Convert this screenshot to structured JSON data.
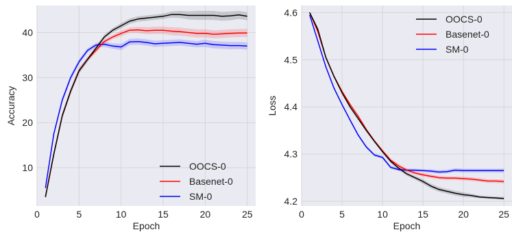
{
  "chart_data": [
    {
      "type": "line",
      "xlabel": "Epoch",
      "ylabel": "Accuracy",
      "xlim": [
        0,
        26
      ],
      "ylim": [
        1.5,
        46
      ],
      "xticks": [
        0,
        5,
        10,
        15,
        20,
        25
      ],
      "yticks": [
        10,
        20,
        30,
        40
      ],
      "legend_position": "bottom-right",
      "grid": true,
      "x": [
        1,
        2,
        3,
        4,
        5,
        6,
        7,
        8,
        9,
        10,
        11,
        12,
        13,
        14,
        15,
        16,
        17,
        18,
        19,
        20,
        21,
        22,
        23,
        24,
        25
      ],
      "series": [
        {
          "name": "OOCS-0",
          "color": "#000000",
          "values": [
            3.5,
            13.0,
            21.5,
            27.0,
            31.5,
            34.0,
            36.5,
            39.0,
            40.5,
            41.5,
            42.5,
            43.0,
            43.2,
            43.4,
            43.6,
            44.0,
            44.0,
            43.8,
            43.8,
            43.8,
            43.8,
            43.6,
            43.7,
            43.9,
            43.6
          ],
          "band": [
            0.3,
            0.5,
            0.6,
            0.6,
            0.6,
            0.5,
            0.5,
            0.5,
            0.5,
            0.6,
            0.6,
            0.6,
            0.6,
            0.6,
            0.6,
            0.7,
            0.8,
            0.9,
            1.0,
            1.0,
            1.0,
            1.0,
            1.0,
            0.9,
            0.9
          ]
        },
        {
          "name": "Basenet-0",
          "color": "#ff0000",
          "values": [
            3.5,
            13.0,
            21.5,
            27.0,
            31.5,
            34.0,
            36.0,
            38.0,
            39.0,
            39.8,
            40.5,
            40.6,
            40.4,
            40.5,
            40.5,
            40.3,
            40.2,
            40.0,
            39.8,
            39.8,
            39.6,
            39.7,
            39.8,
            39.9,
            39.9
          ],
          "band": [
            0.3,
            0.5,
            0.6,
            0.6,
            0.6,
            0.5,
            0.5,
            0.5,
            0.5,
            0.6,
            0.6,
            0.7,
            0.8,
            0.8,
            0.8,
            0.9,
            0.9,
            0.9,
            0.9,
            0.9,
            0.9,
            0.9,
            0.9,
            0.9,
            0.9
          ]
        },
        {
          "name": "SM-0",
          "color": "#0000ff",
          "values": [
            5.5,
            17.5,
            25.0,
            30.0,
            33.5,
            36.0,
            37.2,
            37.4,
            37.0,
            36.8,
            37.9,
            38.0,
            37.8,
            37.5,
            37.6,
            37.7,
            37.8,
            37.6,
            37.4,
            37.6,
            37.3,
            37.2,
            37.1,
            37.1,
            37.0
          ],
          "band": [
            0.3,
            0.5,
            0.6,
            0.6,
            0.6,
            0.5,
            0.5,
            0.6,
            0.6,
            0.7,
            0.7,
            0.7,
            0.7,
            0.7,
            0.7,
            0.7,
            0.7,
            0.7,
            0.7,
            0.8,
            0.8,
            0.8,
            0.8,
            0.8,
            0.8
          ]
        }
      ]
    },
    {
      "type": "line",
      "xlabel": "Epoch",
      "ylabel": "Loss",
      "xlim": [
        0,
        26
      ],
      "ylim": [
        4.19,
        4.615
      ],
      "xticks": [
        0,
        5,
        10,
        15,
        20,
        25
      ],
      "yticks": [
        4.2,
        4.3,
        4.4,
        4.5,
        4.6
      ],
      "legend_position": "top-right",
      "grid": true,
      "x": [
        1,
        2,
        3,
        4,
        5,
        6,
        7,
        8,
        9,
        10,
        11,
        12,
        13,
        14,
        15,
        16,
        17,
        18,
        19,
        20,
        21,
        22,
        23,
        24,
        25
      ],
      "series": [
        {
          "name": "OOCS-0",
          "color": "#000000",
          "values": [
            4.6,
            4.565,
            4.505,
            4.465,
            4.43,
            4.4,
            4.375,
            4.35,
            4.327,
            4.305,
            4.285,
            4.27,
            4.258,
            4.25,
            4.242,
            4.232,
            4.225,
            4.221,
            4.217,
            4.214,
            4.212,
            4.209,
            4.208,
            4.207,
            4.206
          ],
          "band": [
            0.002,
            0.003,
            0.003,
            0.003,
            0.003,
            0.003,
            0.003,
            0.003,
            0.003,
            0.003,
            0.004,
            0.004,
            0.004,
            0.004,
            0.005,
            0.005,
            0.005,
            0.005,
            0.005,
            0.005,
            0.004,
            0.003,
            0.003,
            0.003,
            0.003
          ]
        },
        {
          "name": "Basenet-0",
          "color": "#ff0000",
          "values": [
            4.6,
            4.56,
            4.505,
            4.465,
            4.433,
            4.405,
            4.38,
            4.352,
            4.328,
            4.307,
            4.287,
            4.275,
            4.266,
            4.26,
            4.256,
            4.253,
            4.25,
            4.249,
            4.249,
            4.248,
            4.247,
            4.245,
            4.243,
            4.243,
            4.242
          ],
          "band": [
            0.002,
            0.003,
            0.003,
            0.003,
            0.003,
            0.003,
            0.003,
            0.003,
            0.003,
            0.003,
            0.004,
            0.004,
            0.004,
            0.004,
            0.004,
            0.004,
            0.004,
            0.004,
            0.004,
            0.004,
            0.004,
            0.004,
            0.004,
            0.004,
            0.004
          ]
        },
        {
          "name": "SM-0",
          "color": "#0000ff",
          "values": [
            4.595,
            4.54,
            4.485,
            4.44,
            4.405,
            4.372,
            4.34,
            4.315,
            4.298,
            4.293,
            4.272,
            4.267,
            4.266,
            4.266,
            4.265,
            4.264,
            4.262,
            4.263,
            4.266,
            4.265,
            4.265,
            4.265,
            4.265,
            4.265,
            4.265
          ],
          "band": [
            0.002,
            0.003,
            0.003,
            0.003,
            0.003,
            0.003,
            0.003,
            0.003,
            0.003,
            0.003,
            0.003,
            0.003,
            0.003,
            0.003,
            0.003,
            0.004,
            0.004,
            0.004,
            0.004,
            0.004,
            0.004,
            0.004,
            0.004,
            0.004,
            0.004
          ]
        }
      ]
    }
  ]
}
